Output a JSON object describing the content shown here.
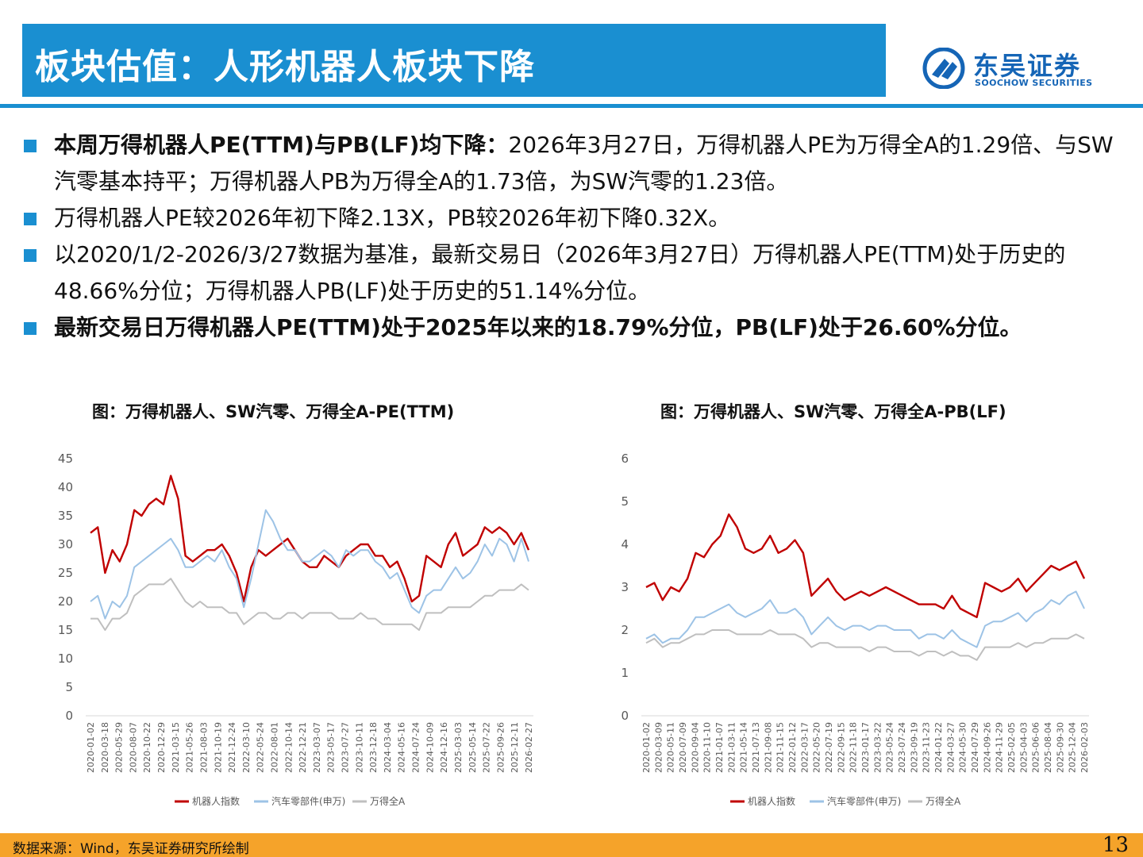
{
  "header": {
    "title": "板块估值：人形机器人板块下降",
    "logo_cn": "东吴证券",
    "logo_en": "SOOCHOW SECURITIES",
    "accent": "#1a8fd1"
  },
  "bullets": [
    {
      "bold": "本周万得机器人PE(TTM)与PB(LF)均下降：",
      "text": "2026年3月27日，万得机器人PE为万得全A的1.29倍、与SW汽零基本持平；万得机器人PB为万得全A的1.73倍，为SW汽零的1.23倍。"
    },
    {
      "bold": "",
      "text": "万得机器人PE较2026年初下降2.13X，PB较2026年初下降0.32X。"
    },
    {
      "bold": "",
      "text": "以2020/1/2-2026/3/27数据为基准，最新交易日（2026年3月27日）万得机器人PE(TTM)处于历史的48.66%分位；万得机器人PB(LF)处于历史的51.14%分位。"
    },
    {
      "bold": "最新交易日万得机器人PE(TTM)处于2025年以来的18.79%分位，PB(LF)处于26.60%分位。",
      "text": ""
    }
  ],
  "chart_data": [
    {
      "type": "line",
      "title": "图：万得机器人、SW汽零、万得全A-PE(TTM)",
      "ylim": [
        0,
        45
      ],
      "yticks": [
        "0",
        "5",
        "10",
        "15",
        "20",
        "25",
        "30",
        "35",
        "40",
        "45"
      ],
      "xticks": [
        "2020-01-02",
        "2020-03-18",
        "2020-05-29",
        "2020-08-07",
        "2020-10-22",
        "2020-12-29",
        "2021-03-15",
        "2021-05-26",
        "2021-08-03",
        "2021-10-19",
        "2021-12-24",
        "2022-03-10",
        "2022-05-24",
        "2022-08-01",
        "2022-10-14",
        "2022-12-21",
        "2023-03-07",
        "2023-05-17",
        "2023-07-27",
        "2023-10-11",
        "2023-12-18",
        "2024-03-04",
        "2024-05-16",
        "2024-07-24",
        "2024-10-09",
        "2024-12-16",
        "2025-03-03",
        "2025-05-14",
        "2025-07-22",
        "2025-09-26",
        "2025-12-11",
        "2026-02-27"
      ],
      "legend_position": "bottom",
      "series": [
        {
          "name": "机器人指数",
          "color": "#c00000",
          "values": [
            32,
            33,
            25,
            29,
            27,
            30,
            36,
            35,
            37,
            38,
            37,
            42,
            38,
            28,
            27,
            28,
            29,
            29,
            30,
            28,
            25,
            20,
            26,
            29,
            28,
            29,
            30,
            31,
            29,
            27,
            26,
            26,
            28,
            27,
            26,
            28,
            29,
            30,
            30,
            28,
            28,
            26,
            27,
            24,
            20,
            21,
            28,
            27,
            26,
            30,
            32,
            28,
            29,
            30,
            33,
            32,
            33,
            32,
            30,
            32,
            29
          ]
        },
        {
          "name": "汽车零部件(申万)",
          "color": "#9dc3e6",
          "values": [
            20,
            21,
            17,
            20,
            19,
            21,
            26,
            27,
            28,
            29,
            30,
            31,
            29,
            26,
            26,
            27,
            28,
            27,
            29,
            26,
            24,
            19,
            24,
            30,
            36,
            34,
            31,
            29,
            29,
            27,
            27,
            28,
            29,
            28,
            26,
            29,
            28,
            29,
            29,
            27,
            26,
            24,
            25,
            22,
            19,
            18,
            21,
            22,
            22,
            24,
            26,
            24,
            25,
            27,
            30,
            28,
            31,
            30,
            27,
            31,
            27
          ]
        },
        {
          "name": "万得全A",
          "color": "#bfbfbf",
          "values": [
            17,
            17,
            15,
            17,
            17,
            18,
            21,
            22,
            23,
            23,
            23,
            24,
            22,
            20,
            19,
            20,
            19,
            19,
            19,
            18,
            18,
            16,
            17,
            18,
            18,
            17,
            17,
            18,
            18,
            17,
            18,
            18,
            18,
            18,
            17,
            17,
            17,
            18,
            17,
            17,
            16,
            16,
            16,
            16,
            16,
            15,
            18,
            18,
            18,
            19,
            19,
            19,
            19,
            20,
            21,
            21,
            22,
            22,
            22,
            23,
            22
          ]
        }
      ]
    },
    {
      "type": "line",
      "title": "图：万得机器人、SW汽零、万得全A-PB(LF)",
      "ylim": [
        0,
        6
      ],
      "yticks": [
        "0",
        "1",
        "2",
        "3",
        "4",
        "5",
        "6"
      ],
      "xticks": [
        "2020-01-02",
        "2020-03-09",
        "2020-05-11",
        "2020-07-09",
        "2020-09-04",
        "2020-11-10",
        "2021-01-07",
        "2021-03-11",
        "2021-05-14",
        "2021-07-13",
        "2021-09-08",
        "2021-11-15",
        "2022-01-12",
        "2022-03-17",
        "2022-05-20",
        "2022-07-19",
        "2022-09-15",
        "2022-11-18",
        "2023-01-17",
        "2023-03-22",
        "2023-05-24",
        "2023-07-24",
        "2023-09-19",
        "2023-11-23",
        "2024-01-22",
        "2024-03-27",
        "2024-05-30",
        "2024-07-29",
        "2024-09-26",
        "2024-11-29",
        "2025-02-05",
        "2025-04-03",
        "2025-06-06",
        "2025-08-04",
        "2025-09-30",
        "2025-12-04",
        "2026-02-03"
      ],
      "legend_position": "bottom",
      "series": [
        {
          "name": "机器人指数",
          "color": "#c00000",
          "values": [
            3.0,
            3.1,
            2.7,
            3.0,
            2.9,
            3.2,
            3.8,
            3.7,
            4.0,
            4.2,
            4.7,
            4.4,
            3.9,
            3.8,
            3.9,
            4.2,
            3.8,
            3.9,
            4.1,
            3.8,
            2.8,
            3.0,
            3.2,
            2.9,
            2.7,
            2.8,
            2.9,
            2.8,
            2.9,
            3.0,
            2.9,
            2.8,
            2.7,
            2.6,
            2.6,
            2.6,
            2.5,
            2.8,
            2.5,
            2.4,
            2.3,
            3.1,
            3.0,
            2.9,
            3.0,
            3.2,
            2.9,
            3.1,
            3.3,
            3.5,
            3.4,
            3.5,
            3.6,
            3.2
          ]
        },
        {
          "name": "汽车零部件(申万)",
          "color": "#9dc3e6",
          "values": [
            1.8,
            1.9,
            1.7,
            1.8,
            1.8,
            2.0,
            2.3,
            2.3,
            2.4,
            2.5,
            2.6,
            2.4,
            2.3,
            2.4,
            2.5,
            2.7,
            2.4,
            2.4,
            2.5,
            2.3,
            1.9,
            2.1,
            2.3,
            2.1,
            2.0,
            2.1,
            2.1,
            2.0,
            2.1,
            2.1,
            2.0,
            2.0,
            2.0,
            1.8,
            1.9,
            1.9,
            1.8,
            2.0,
            1.8,
            1.7,
            1.6,
            2.1,
            2.2,
            2.2,
            2.3,
            2.4,
            2.2,
            2.4,
            2.5,
            2.7,
            2.6,
            2.8,
            2.9,
            2.5
          ]
        },
        {
          "name": "万得全A",
          "color": "#bfbfbf",
          "values": [
            1.7,
            1.8,
            1.6,
            1.7,
            1.7,
            1.8,
            1.9,
            1.9,
            2.0,
            2.0,
            2.0,
            1.9,
            1.9,
            1.9,
            1.9,
            2.0,
            1.9,
            1.9,
            1.9,
            1.8,
            1.6,
            1.7,
            1.7,
            1.6,
            1.6,
            1.6,
            1.6,
            1.5,
            1.6,
            1.6,
            1.5,
            1.5,
            1.5,
            1.4,
            1.5,
            1.5,
            1.4,
            1.5,
            1.4,
            1.4,
            1.3,
            1.6,
            1.6,
            1.6,
            1.6,
            1.7,
            1.6,
            1.7,
            1.7,
            1.8,
            1.8,
            1.8,
            1.9,
            1.8
          ]
        }
      ]
    }
  ],
  "footer": {
    "source": "数据来源：Wind，东吴证券研究所绘制",
    "page": "13",
    "color": "#f5a32a"
  }
}
